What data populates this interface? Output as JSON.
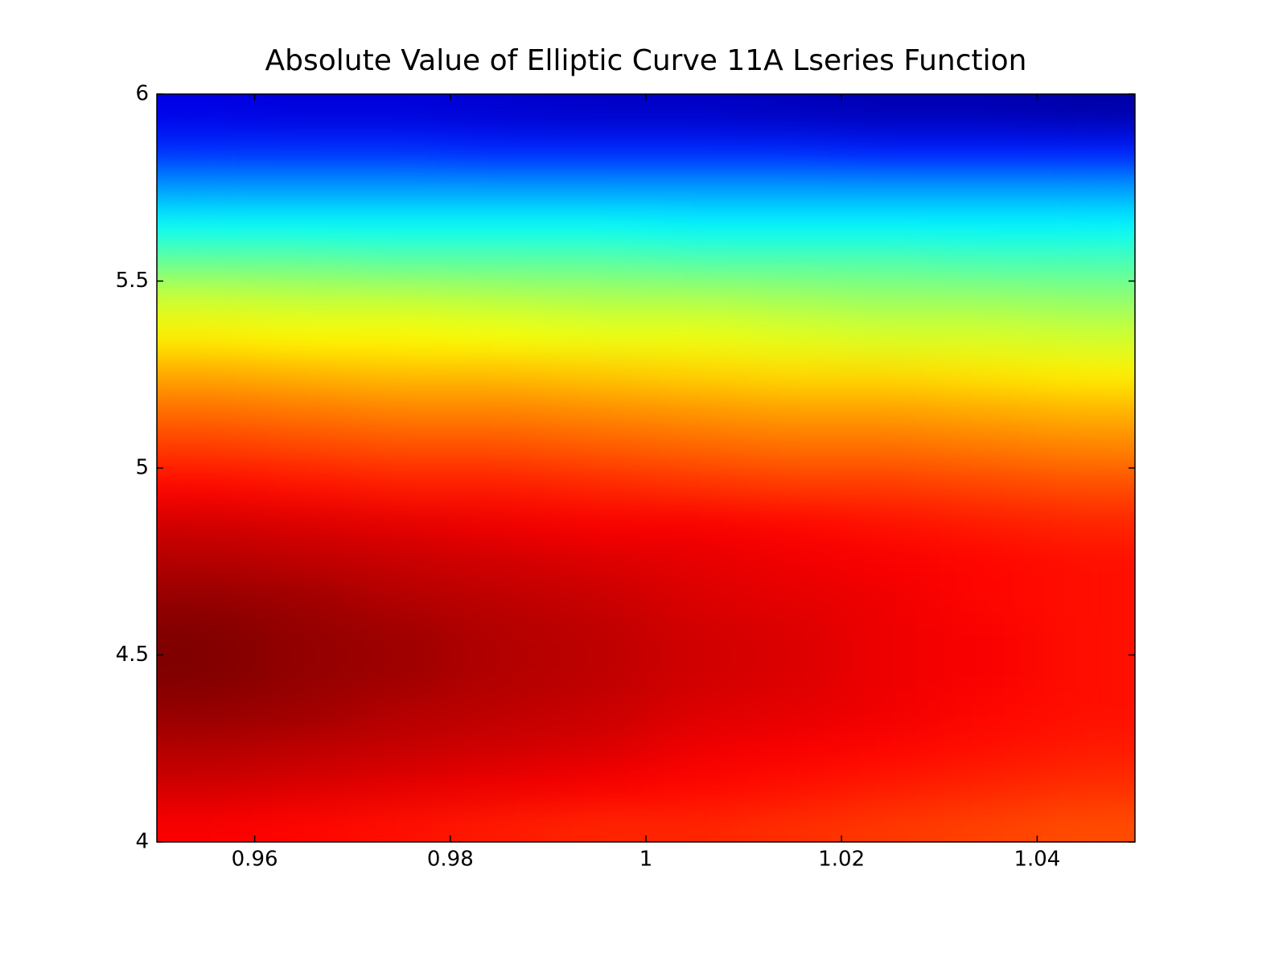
{
  "chart_data": {
    "type": "heatmap",
    "title": "Absolute Value of Elliptic Curve 11A Lseries Function",
    "colormap": "jet",
    "zlim": [
      0,
      1
    ],
    "xlim": [
      0.95,
      1.05
    ],
    "ylim": [
      4,
      6
    ],
    "xticks": [
      0.96,
      0.98,
      1,
      1.02,
      1.04
    ],
    "yticks": [
      4,
      4.5,
      5,
      5.5,
      6
    ],
    "x": [
      0.955,
      0.965,
      0.975,
      0.985,
      0.995,
      1.005,
      1.015,
      1.025,
      1.035,
      1.045
    ],
    "y": [
      4.05,
      4.15,
      4.25,
      4.35,
      4.45,
      4.55,
      4.65,
      4.75,
      4.85,
      4.95,
      5.05,
      5.15,
      5.25,
      5.35,
      5.45,
      5.55,
      5.65,
      5.75,
      5.85,
      5.95
    ],
    "z": [
      [
        0.88,
        0.87,
        0.86,
        0.85,
        0.84,
        0.84,
        0.83,
        0.82,
        0.81,
        0.8
      ],
      [
        0.92,
        0.91,
        0.9,
        0.89,
        0.88,
        0.87,
        0.86,
        0.85,
        0.84,
        0.83
      ],
      [
        0.95,
        0.94,
        0.93,
        0.92,
        0.91,
        0.89,
        0.88,
        0.87,
        0.86,
        0.85
      ],
      [
        0.98,
        0.97,
        0.95,
        0.94,
        0.93,
        0.91,
        0.9,
        0.89,
        0.87,
        0.86
      ],
      [
        1.0,
        0.98,
        0.97,
        0.95,
        0.94,
        0.92,
        0.91,
        0.89,
        0.88,
        0.86
      ],
      [
        1.0,
        0.98,
        0.97,
        0.95,
        0.94,
        0.92,
        0.91,
        0.89,
        0.88,
        0.86
      ],
      [
        0.98,
        0.97,
        0.95,
        0.94,
        0.93,
        0.91,
        0.9,
        0.89,
        0.87,
        0.86
      ],
      [
        0.95,
        0.94,
        0.93,
        0.92,
        0.91,
        0.9,
        0.89,
        0.88,
        0.87,
        0.86
      ],
      [
        0.92,
        0.91,
        0.9,
        0.89,
        0.88,
        0.88,
        0.87,
        0.86,
        0.85,
        0.84
      ],
      [
        0.87,
        0.86,
        0.85,
        0.85,
        0.84,
        0.83,
        0.82,
        0.82,
        0.81,
        0.8
      ],
      [
        0.82,
        0.81,
        0.8,
        0.8,
        0.79,
        0.78,
        0.77,
        0.77,
        0.76,
        0.75
      ],
      [
        0.77,
        0.76,
        0.75,
        0.75,
        0.74,
        0.73,
        0.72,
        0.72,
        0.71,
        0.7
      ],
      [
        0.71,
        0.7,
        0.69,
        0.69,
        0.68,
        0.67,
        0.66,
        0.66,
        0.65,
        0.64
      ],
      [
        0.64,
        0.63,
        0.63,
        0.62,
        0.61,
        0.61,
        0.6,
        0.59,
        0.59,
        0.58
      ],
      [
        0.58,
        0.57,
        0.57,
        0.56,
        0.55,
        0.55,
        0.54,
        0.53,
        0.53,
        0.52
      ],
      [
        0.48,
        0.48,
        0.47,
        0.47,
        0.47,
        0.46,
        0.46,
        0.46,
        0.45,
        0.45
      ],
      [
        0.38,
        0.38,
        0.38,
        0.38,
        0.38,
        0.37,
        0.37,
        0.37,
        0.37,
        0.37
      ],
      [
        0.28,
        0.28,
        0.28,
        0.28,
        0.28,
        0.28,
        0.28,
        0.28,
        0.28,
        0.28
      ],
      [
        0.17,
        0.17,
        0.17,
        0.16,
        0.16,
        0.16,
        0.16,
        0.15,
        0.15,
        0.15
      ],
      [
        0.1,
        0.09,
        0.09,
        0.08,
        0.07,
        0.07,
        0.06,
        0.05,
        0.05,
        0.04
      ]
    ]
  }
}
